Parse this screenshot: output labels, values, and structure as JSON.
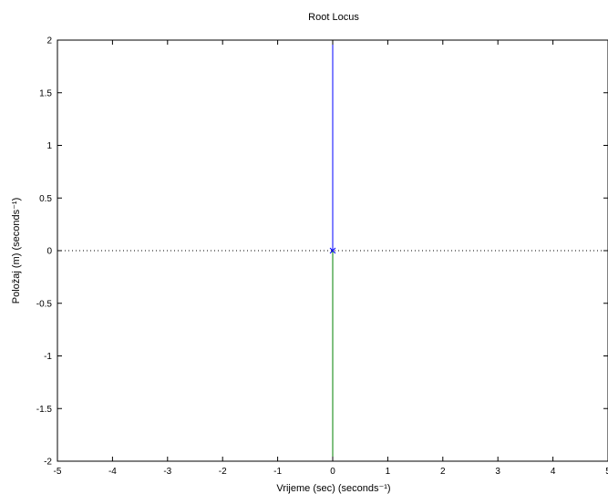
{
  "chart_data": {
    "type": "line",
    "title": "Root Locus",
    "xlabel": "Vrijeme (sec) (seconds⁻¹)",
    "ylabel": "Položaj (m) (seconds⁻¹)",
    "xlim": [
      -5,
      5
    ],
    "ylim": [
      -2,
      2
    ],
    "xticks": [
      "-5",
      "-4",
      "-3",
      "-2",
      "-1",
      "0",
      "1",
      "2",
      "3",
      "4",
      "5"
    ],
    "yticks": [
      "-2",
      "-1.5",
      "-1",
      "-0.5",
      "0",
      "0.5",
      "1",
      "1.5",
      "2"
    ],
    "grid": false,
    "zero_line": {
      "y": 0,
      "style": "dotted"
    },
    "series": [
      {
        "color": "#0000ff",
        "x": [
          0,
          0
        ],
        "y": [
          0,
          2
        ]
      },
      {
        "color": "#008000",
        "x": [
          0,
          0
        ],
        "y": [
          0,
          -2
        ]
      }
    ],
    "poles": [
      {
        "x": 0,
        "y": 0,
        "marker": "x",
        "color": "#0000ff"
      }
    ]
  }
}
